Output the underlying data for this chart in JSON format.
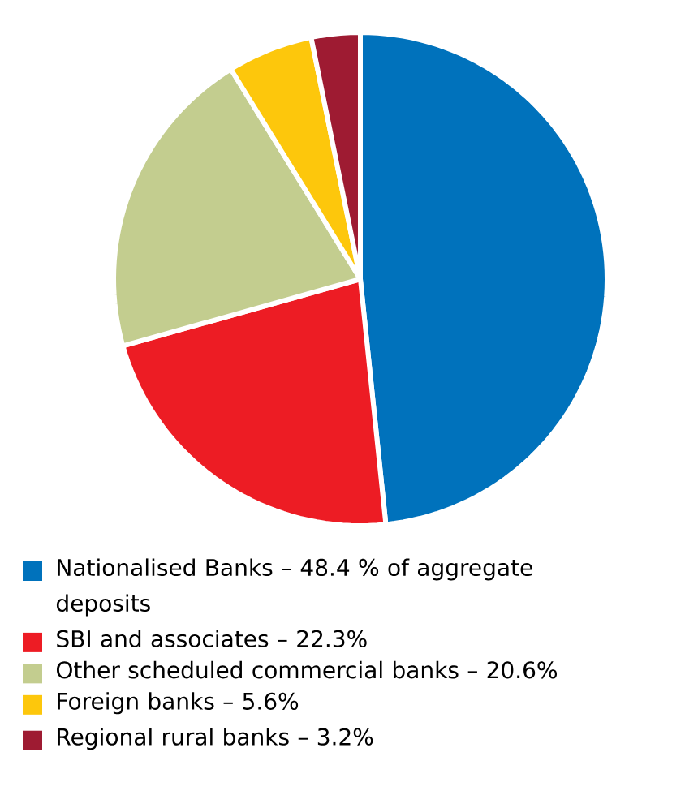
{
  "chart_data": {
    "type": "pie",
    "categories": [
      "Nationalised Banks – 48.4 % of aggregate deposits",
      "SBI and associates – 22.3%",
      "Other scheduled commercial banks – 20.6%",
      "Foreign banks – 5.6%",
      "Regional rural banks – 3.2%"
    ],
    "values": [
      48.4,
      22.3,
      20.6,
      5.6,
      3.2
    ],
    "colors": [
      "#0072bc",
      "#ed1c24",
      "#c3cd8f",
      "#fdc70c",
      "#9e1b32"
    ],
    "legend": "bottom"
  }
}
